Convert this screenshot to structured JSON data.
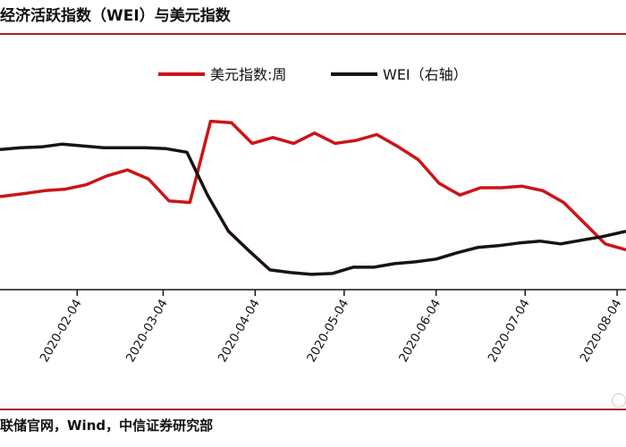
{
  "title": "经济活跃指数（WEI）与美元指数",
  "source": "联储官网，Wind，中信证券研究部",
  "chart_data": {
    "type": "line",
    "title": "经济活跃指数（WEI）与美元指数",
    "legend_position": "top-center",
    "grid": false,
    "x_ticks": [
      "2020-02-04",
      "2020-03-04",
      "2020-04-04",
      "2020-05-04",
      "2020-06-04",
      "2020-07-04",
      "2020-08-04"
    ],
    "xlim": [
      "2020-01-09",
      "2020-08-07"
    ],
    "series": [
      {
        "name": "美元指数:周",
        "color": "#cc1417",
        "axis": "left",
        "x": [
          "2020-01-09",
          "2020-01-17",
          "2020-01-24",
          "2020-01-31",
          "2020-02-07",
          "2020-02-14",
          "2020-02-21",
          "2020-02-28",
          "2020-03-06",
          "2020-03-13",
          "2020-03-20",
          "2020-03-27",
          "2020-04-03",
          "2020-04-10",
          "2020-04-17",
          "2020-04-24",
          "2020-05-01",
          "2020-05-08",
          "2020-05-15",
          "2020-05-22",
          "2020-05-29",
          "2020-06-05",
          "2020-06-12",
          "2020-06-19",
          "2020-06-26",
          "2020-07-03",
          "2020-07-10",
          "2020-07-17",
          "2020-07-24",
          "2020-07-31",
          "2020-08-07"
        ],
        "values": [
          97.2,
          97.4,
          97.6,
          97.7,
          98.0,
          98.6,
          99.0,
          98.4,
          96.9,
          96.8,
          102.3,
          102.2,
          100.8,
          101.2,
          100.8,
          101.5,
          100.8,
          101.0,
          101.4,
          100.6,
          99.7,
          98.1,
          97.3,
          97.8,
          97.8,
          97.9,
          97.6,
          96.8,
          95.4,
          94.0,
          93.6
        ]
      },
      {
        "name": "WEI（右轴）",
        "color": "#1a1311",
        "axis": "right",
        "x": [
          "2020-01-09",
          "2020-01-16",
          "2020-01-23",
          "2020-01-30",
          "2020-02-06",
          "2020-02-13",
          "2020-02-20",
          "2020-02-27",
          "2020-03-05",
          "2020-03-12",
          "2020-03-19",
          "2020-03-26",
          "2020-04-02",
          "2020-04-09",
          "2020-04-16",
          "2020-04-23",
          "2020-04-30",
          "2020-05-07",
          "2020-05-14",
          "2020-05-21",
          "2020-05-28",
          "2020-06-04",
          "2020-06-11",
          "2020-06-18",
          "2020-06-25",
          "2020-07-02",
          "2020-07-09",
          "2020-07-16",
          "2020-07-23",
          "2020-07-30",
          "2020-08-07"
        ],
        "values": [
          1.6,
          1.8,
          1.9,
          2.2,
          2.0,
          1.8,
          1.8,
          1.8,
          1.7,
          1.3,
          -3.5,
          -7.5,
          -9.7,
          -11.8,
          -12.1,
          -12.3,
          -12.2,
          -11.5,
          -11.5,
          -11.1,
          -10.9,
          -10.6,
          -9.9,
          -9.3,
          -9.1,
          -8.8,
          -8.6,
          -8.9,
          -8.5,
          -8.1,
          -7.5
        ]
      }
    ]
  }
}
